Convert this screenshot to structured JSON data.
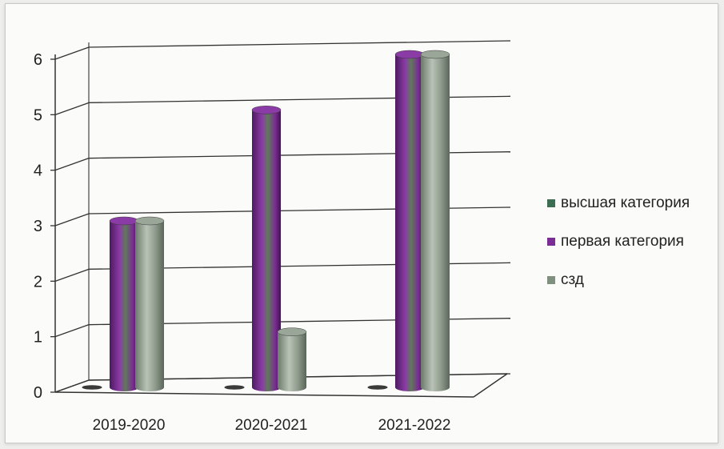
{
  "chart_data": {
    "type": "bar",
    "style": "3d-cylinder",
    "categories": [
      "2019-2020",
      "2020-2021",
      "2021-2022"
    ],
    "series": [
      {
        "name": "высшая категория",
        "values": [
          0,
          0,
          0
        ],
        "color": "#3e6e52"
      },
      {
        "name": "первая категория",
        "values": [
          3,
          5,
          6
        ],
        "color": "#7b2d94"
      },
      {
        "name": "сзд",
        "values": [
          3,
          1,
          6
        ],
        "color": "#7f907f"
      }
    ],
    "yticks": [
      "0",
      "1",
      "2",
      "3",
      "4",
      "5",
      "6"
    ],
    "ylim": [
      0,
      6
    ],
    "grid": true,
    "legend_position": "right",
    "title": "",
    "xlabel": "",
    "ylabel": ""
  }
}
